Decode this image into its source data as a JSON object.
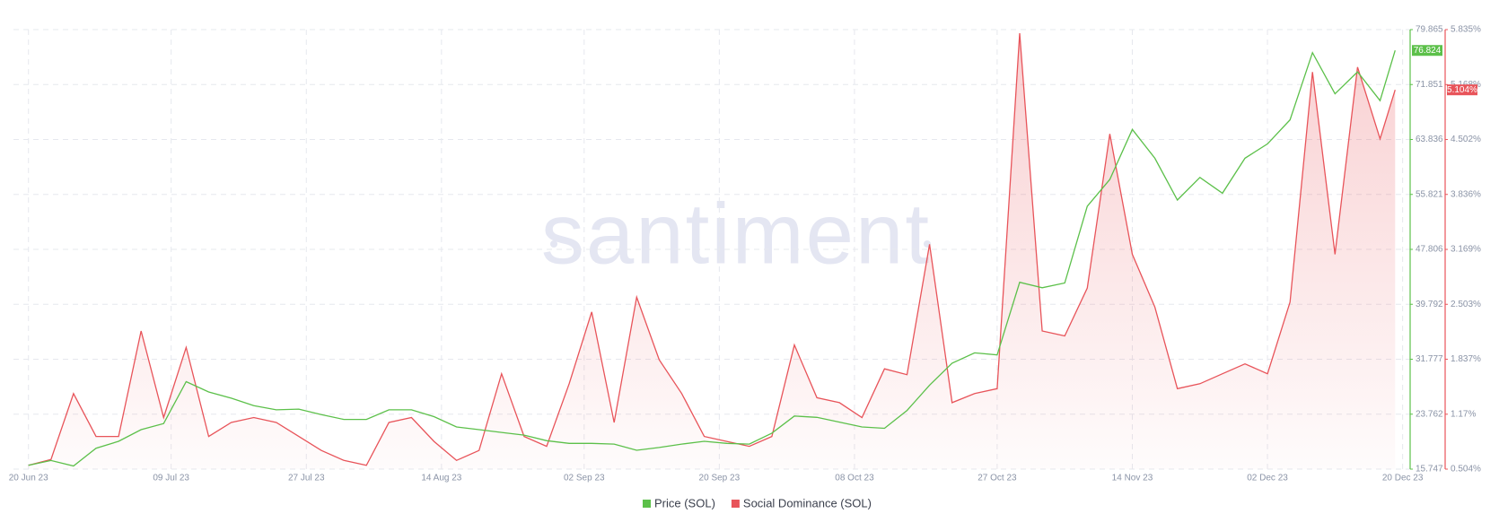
{
  "chart_data": {
    "type": "line",
    "watermark": "santiment",
    "x": [
      "2023-06-20",
      "2023-06-23",
      "2023-06-26",
      "2023-06-29",
      "2023-07-02",
      "2023-07-05",
      "2023-07-08",
      "2023-07-11",
      "2023-07-14",
      "2023-07-17",
      "2023-07-20",
      "2023-07-23",
      "2023-07-26",
      "2023-07-29",
      "2023-08-01",
      "2023-08-04",
      "2023-08-07",
      "2023-08-10",
      "2023-08-13",
      "2023-08-16",
      "2023-08-19",
      "2023-08-22",
      "2023-08-25",
      "2023-08-28",
      "2023-08-31",
      "2023-09-03",
      "2023-09-06",
      "2023-09-09",
      "2023-09-12",
      "2023-09-15",
      "2023-09-18",
      "2023-09-21",
      "2023-09-24",
      "2023-09-27",
      "2023-09-30",
      "2023-10-03",
      "2023-10-06",
      "2023-10-09",
      "2023-10-12",
      "2023-10-15",
      "2023-10-18",
      "2023-10-21",
      "2023-10-24",
      "2023-10-27",
      "2023-10-30",
      "2023-11-02",
      "2023-11-05",
      "2023-11-08",
      "2023-11-11",
      "2023-11-14",
      "2023-11-17",
      "2023-11-20",
      "2023-11-23",
      "2023-11-26",
      "2023-11-29",
      "2023-12-02",
      "2023-12-05",
      "2023-12-08",
      "2023-12-11",
      "2023-12-14",
      "2023-12-17",
      "2023-12-19"
    ],
    "xlim": [
      "2023-06-18",
      "2023-12-21"
    ],
    "xticks": [
      {
        "value": "2023-06-20",
        "label": "20 Jun 23"
      },
      {
        "value": "2023-07-09",
        "label": "09 Jul 23"
      },
      {
        "value": "2023-07-27",
        "label": "27 Jul 23"
      },
      {
        "value": "2023-08-14",
        "label": "14 Aug 23"
      },
      {
        "value": "2023-09-02",
        "label": "02 Sep 23"
      },
      {
        "value": "2023-09-20",
        "label": "20 Sep 23"
      },
      {
        "value": "2023-10-08",
        "label": "08 Oct 23"
      },
      {
        "value": "2023-10-27",
        "label": "27 Oct 23"
      },
      {
        "value": "2023-11-14",
        "label": "14 Nov 23"
      },
      {
        "value": "2023-12-02",
        "label": "02 Dec 23"
      },
      {
        "value": "2023-12-20",
        "label": "20 Dec 23"
      }
    ],
    "ylim": [
      15.747,
      79.865
    ],
    "yticks": [
      15.747,
      23.762,
      31.777,
      39.792,
      47.806,
      55.821,
      63.836,
      71.851,
      79.865
    ],
    "y2lim": [
      0.504,
      5.835
    ],
    "y2ticks": [
      {
        "value": 0.504,
        "label": "0.504%"
      },
      {
        "value": 1.17,
        "label": "1.17%"
      },
      {
        "value": 1.837,
        "label": "1.837%"
      },
      {
        "value": 2.503,
        "label": "2.503%"
      },
      {
        "value": 3.169,
        "label": "3.169%"
      },
      {
        "value": 3.836,
        "label": "3.836%"
      },
      {
        "value": 4.502,
        "label": "4.502%"
      },
      {
        "value": 5.168,
        "label": "5.168%"
      },
      {
        "value": 5.835,
        "label": "5.835%"
      }
    ],
    "grid": true,
    "series": [
      {
        "name": "Price (SOL)",
        "color": "#5cc04a",
        "axis": "y",
        "values": [
          16.3,
          17.0,
          16.2,
          18.8,
          19.8,
          21.5,
          22.4,
          28.5,
          27.0,
          26.1,
          25.0,
          24.4,
          24.5,
          23.7,
          23.0,
          23.0,
          24.4,
          24.4,
          23.4,
          21.9,
          21.5,
          21.1,
          20.7,
          19.9,
          19.5,
          19.5,
          19.4,
          18.5,
          18.9,
          19.4,
          19.8,
          19.5,
          19.4,
          21.0,
          23.5,
          23.3,
          22.6,
          21.9,
          21.7,
          24.3,
          28.0,
          31.2,
          32.7,
          32.4,
          43.0,
          42.2,
          42.9,
          54.1,
          58.0,
          65.3,
          61.1,
          55.0,
          58.3,
          56.0,
          61.1,
          63.2,
          66.7,
          76.5,
          70.5,
          73.7,
          69.5,
          76.824
        ]
      },
      {
        "name": "Social Dominance (SOL)",
        "color": "#e8545a",
        "axis": "y2",
        "last_value_label": "5.104%",
        "values": [
          0.55,
          0.62,
          1.42,
          0.9,
          0.9,
          2.18,
          1.13,
          1.98,
          0.9,
          1.07,
          1.13,
          1.07,
          0.9,
          0.73,
          0.61,
          0.55,
          1.07,
          1.13,
          0.84,
          0.61,
          0.73,
          1.66,
          0.9,
          0.78,
          1.54,
          2.41,
          1.07,
          2.59,
          1.83,
          1.42,
          0.9,
          0.84,
          0.78,
          0.9,
          2.01,
          1.37,
          1.31,
          1.13,
          1.72,
          1.65,
          3.23,
          1.31,
          1.42,
          1.48,
          5.79,
          2.18,
          2.12,
          2.7,
          4.57,
          3.11,
          2.47,
          1.48,
          1.54,
          1.66,
          1.78,
          1.66,
          2.53,
          5.32,
          3.11,
          5.38,
          4.51,
          5.104
        ]
      }
    ]
  }
}
